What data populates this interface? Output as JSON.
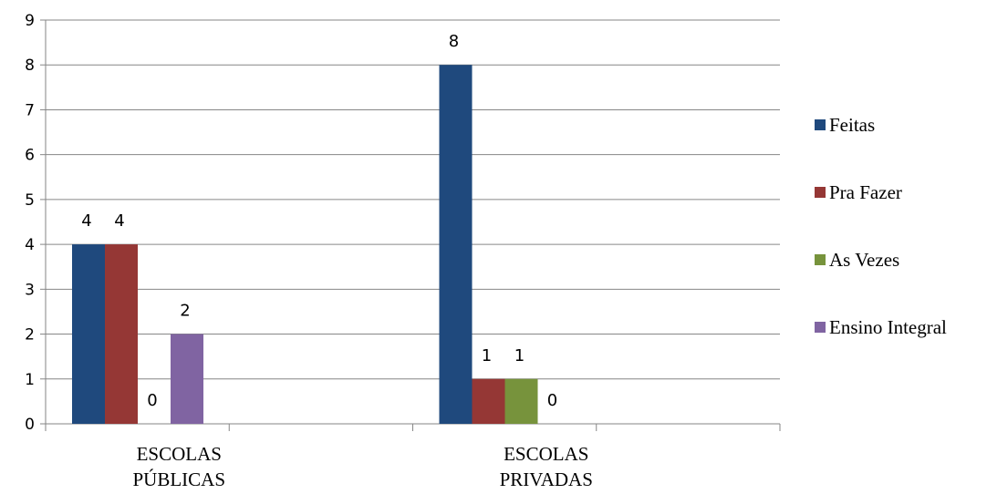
{
  "chart_data": {
    "type": "bar",
    "categories": [
      [
        "ESCOLAS",
        "PÚBLICAS"
      ],
      [
        "ESCOLAS",
        "PRIVADAS"
      ]
    ],
    "series": [
      {
        "name": "Feitas",
        "values": [
          4,
          8
        ],
        "color": "#1F497D"
      },
      {
        "name": "Pra Fazer",
        "values": [
          4,
          1
        ],
        "color": "#953735"
      },
      {
        "name": "As Vezes",
        "values": [
          0,
          1
        ],
        "color": "#77933C"
      },
      {
        "name": "Ensino Integral",
        "values": [
          2,
          0
        ],
        "color": "#8064A2"
      }
    ],
    "ylim": [
      0,
      9
    ],
    "yticks": [
      0,
      1,
      2,
      3,
      4,
      5,
      6,
      7,
      8,
      9
    ],
    "grid": true,
    "legend_position": "right",
    "data_labels": true
  }
}
